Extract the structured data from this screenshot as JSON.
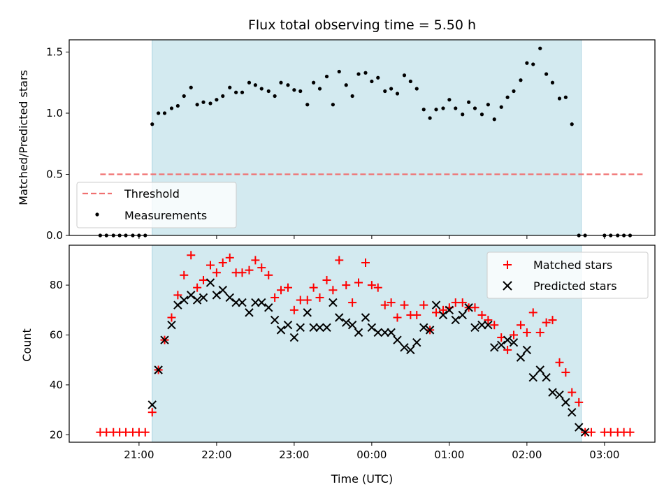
{
  "chart_data": [
    {
      "type": "scatter",
      "title": "Flux total observing time = 5.50 h",
      "xlabel": "",
      "ylabel": "Matched/Predicted stars",
      "ylim": [
        0,
        1.6
      ],
      "yticks": [
        "0.0",
        "0.5",
        "1.0",
        "1.5"
      ],
      "x_range_hours": [
        20.1,
        27.65
      ],
      "shaded_range_hours": [
        21.17,
        26.7
      ],
      "shade_color": "#d3eaf0",
      "legend": {
        "placement": "lower-left",
        "entries": [
          "Threshold",
          "Measurements"
        ]
      },
      "threshold": {
        "name": "Threshold",
        "y": 0.5,
        "x_start": 20.5,
        "x_end": 27.5,
        "color": "#f07070"
      },
      "series": [
        {
          "name": "Measurements",
          "color": "#000000",
          "x": [
            20.5,
            20.58,
            20.67,
            20.75,
            20.83,
            20.92,
            21.0,
            21.08,
            21.17,
            21.25,
            21.33,
            21.42,
            21.5,
            21.58,
            21.67,
            21.75,
            21.83,
            21.92,
            22.0,
            22.08,
            22.17,
            22.25,
            22.33,
            22.42,
            22.5,
            22.58,
            22.67,
            22.75,
            22.83,
            22.92,
            23.0,
            23.08,
            23.17,
            23.25,
            23.33,
            23.42,
            23.5,
            23.58,
            23.67,
            23.75,
            23.83,
            23.92,
            24.0,
            24.08,
            24.17,
            24.25,
            24.33,
            24.42,
            24.5,
            24.58,
            24.67,
            24.75,
            24.83,
            24.92,
            25.0,
            25.08,
            25.17,
            25.25,
            25.33,
            25.42,
            25.5,
            25.58,
            25.67,
            25.75,
            25.83,
            25.92,
            26.0,
            26.08,
            26.17,
            26.25,
            26.33,
            26.42,
            26.5,
            26.58,
            26.67,
            26.75,
            27.0,
            27.08,
            27.17,
            27.25,
            27.33
          ],
          "y": [
            0,
            0,
            0,
            0,
            0,
            0,
            0,
            0,
            0.91,
            1.0,
            1.0,
            1.04,
            1.06,
            1.14,
            1.21,
            1.07,
            1.09,
            1.08,
            1.11,
            1.14,
            1.21,
            1.17,
            1.17,
            1.25,
            1.23,
            1.2,
            1.18,
            1.14,
            1.25,
            1.23,
            1.19,
            1.18,
            1.07,
            1.25,
            1.2,
            1.3,
            1.07,
            1.34,
            1.23,
            1.14,
            1.32,
            1.33,
            1.26,
            1.29,
            1.18,
            1.2,
            1.16,
            1.31,
            1.26,
            1.2,
            1.03,
            0.96,
            1.03,
            1.04,
            1.11,
            1.04,
            0.99,
            1.09,
            1.04,
            0.99,
            1.07,
            0.95,
            1.05,
            1.13,
            1.18,
            1.27,
            1.41,
            1.4,
            1.53,
            1.32,
            1.25,
            1.12,
            1.13,
            0.91,
            0,
            0,
            0,
            0,
            0,
            0,
            0
          ]
        }
      ]
    },
    {
      "type": "scatter",
      "title": "",
      "xlabel": "Time (UTC)",
      "ylabel": "Count",
      "ylim": [
        17,
        96
      ],
      "yticks": [
        "20",
        "40",
        "60",
        "80"
      ],
      "xticks": [
        {
          "hour": 21,
          "label": "21:00"
        },
        {
          "hour": 22,
          "label": "22:00"
        },
        {
          "hour": 23,
          "label": "23:00"
        },
        {
          "hour": 24,
          "label": "00:00"
        },
        {
          "hour": 25,
          "label": "01:00"
        },
        {
          "hour": 26,
          "label": "02:00"
        },
        {
          "hour": 27,
          "label": "03:00"
        }
      ],
      "x_range_hours": [
        20.1,
        27.65
      ],
      "shaded_range_hours": [
        21.17,
        26.7
      ],
      "shade_color": "#d3eaf0",
      "legend": {
        "placement": "upper-right",
        "entries": [
          "Matched stars",
          "Predicted stars"
        ]
      },
      "series": [
        {
          "name": "Matched stars",
          "marker": "plus",
          "color": "#ff0000",
          "x": [
            20.5,
            20.58,
            20.67,
            20.75,
            20.83,
            20.92,
            21.0,
            21.08,
            21.17,
            21.25,
            21.33,
            21.42,
            21.5,
            21.58,
            21.67,
            21.75,
            21.83,
            21.92,
            22.0,
            22.08,
            22.17,
            22.25,
            22.33,
            22.42,
            22.5,
            22.58,
            22.67,
            22.75,
            22.83,
            22.92,
            23.0,
            23.08,
            23.17,
            23.25,
            23.33,
            23.42,
            23.5,
            23.58,
            23.67,
            23.75,
            23.83,
            23.92,
            24.0,
            24.08,
            24.17,
            24.25,
            24.33,
            24.42,
            24.5,
            24.58,
            24.67,
            24.75,
            24.83,
            24.92,
            25.0,
            25.08,
            25.17,
            25.25,
            25.33,
            25.42,
            25.5,
            25.58,
            25.67,
            25.75,
            25.83,
            25.92,
            26.0,
            26.08,
            26.17,
            26.25,
            26.33,
            26.42,
            26.5,
            26.58,
            26.67,
            26.75,
            26.83,
            27.0,
            27.08,
            27.17,
            27.25,
            27.33
          ],
          "y": [
            21,
            21,
            21,
            21,
            21,
            21,
            21,
            21,
            29,
            46,
            58,
            67,
            76,
            84,
            92,
            79,
            82,
            88,
            85,
            89,
            91,
            85,
            85,
            86,
            90,
            87,
            84,
            75,
            78,
            79,
            70,
            74,
            74,
            79,
            75,
            82,
            78,
            90,
            80,
            73,
            81,
            89,
            80,
            79,
            72,
            73,
            67,
            72,
            68,
            68,
            72,
            62,
            69,
            70,
            71,
            73,
            73,
            71,
            71,
            68,
            66,
            64,
            59,
            54,
            60,
            64,
            61,
            69,
            61,
            65,
            66,
            49,
            45,
            37,
            33,
            21,
            21,
            21,
            21,
            21,
            21,
            21
          ],
          "x_note_unused": ""
        },
        {
          "name": "Predicted stars",
          "marker": "x",
          "color": "#000000",
          "x": [
            21.17,
            21.25,
            21.33,
            21.42,
            21.5,
            21.58,
            21.67,
            21.75,
            21.83,
            21.92,
            22.0,
            22.08,
            22.17,
            22.25,
            22.33,
            22.42,
            22.5,
            22.58,
            22.67,
            22.75,
            22.83,
            22.92,
            23.0,
            23.08,
            23.17,
            23.25,
            23.33,
            23.42,
            23.5,
            23.58,
            23.67,
            23.75,
            23.83,
            23.92,
            24.0,
            24.08,
            24.17,
            24.25,
            24.33,
            24.42,
            24.5,
            24.58,
            24.67,
            24.75,
            24.83,
            24.92,
            25.0,
            25.08,
            25.17,
            25.25,
            25.33,
            25.42,
            25.5,
            25.58,
            25.67,
            25.75,
            25.83,
            25.92,
            26.0,
            26.08,
            26.17,
            26.25,
            26.33,
            26.42,
            26.5,
            26.58,
            26.67,
            26.75
          ],
          "y": [
            32,
            46,
            58,
            64,
            72,
            74,
            76,
            74,
            75,
            81,
            76,
            78,
            75,
            73,
            73,
            69,
            73,
            73,
            71,
            66,
            62,
            64,
            59,
            63,
            69,
            63,
            63,
            63,
            73,
            67,
            65,
            64,
            61,
            67,
            63,
            61,
            61,
            61,
            58,
            55,
            54,
            57,
            63,
            62,
            72,
            68,
            70,
            66,
            68,
            71,
            63,
            64,
            64,
            55,
            56,
            58,
            57,
            51,
            54,
            43,
            46,
            43,
            37,
            36,
            33,
            29,
            23,
            21
          ]
        }
      ]
    }
  ]
}
